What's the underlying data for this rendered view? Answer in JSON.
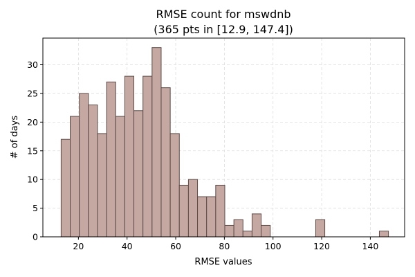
{
  "chart_data": {
    "type": "bar",
    "title_line1": "RMSE count for mswdnb",
    "title_line2": "(365 pts in [12.9, 147.4])",
    "xlabel": "RMSE values",
    "ylabel": "# of days",
    "xlim": [
      5.4,
      154.1
    ],
    "ylim": [
      0,
      34.65
    ],
    "x_ticks": [
      20,
      40,
      60,
      80,
      100,
      120,
      140
    ],
    "y_ticks": [
      0,
      5,
      10,
      15,
      20,
      25,
      30
    ],
    "grid": true,
    "bin_start": 12.9,
    "bin_width": 3.7375,
    "counts": [
      17,
      21,
      25,
      23,
      18,
      27,
      21,
      28,
      22,
      28,
      33,
      26,
      18,
      9,
      10,
      7,
      7,
      9,
      2,
      3,
      1,
      4,
      2,
      0,
      0,
      0,
      0,
      0,
      3,
      0,
      0,
      0,
      0,
      0,
      0,
      1
    ],
    "bar_color": "#c4a8a1",
    "edge_color": "#5b4a47",
    "grid_color": "#dddddd"
  }
}
